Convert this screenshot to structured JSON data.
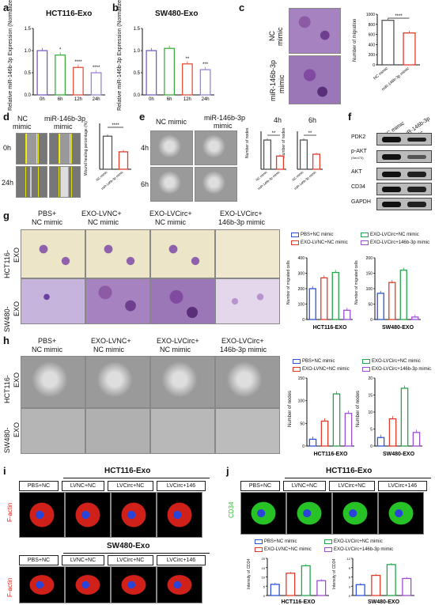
{
  "panels": {
    "a": "a",
    "b": "b",
    "c": "c",
    "d": "d",
    "e": "e",
    "f": "f",
    "g": "g",
    "h": "h",
    "i": "i",
    "j": "j"
  },
  "titles": {
    "a": "HCT116-Exo",
    "b": "SW480-Exo",
    "i": "HCT116-Exo",
    "i2": "SW480-Exo",
    "j": "HCT116-Exo"
  },
  "labels": {
    "nc_mimic": "NC mimic",
    "mir_mimic": "miR-146b-3p mimic",
    "nc": "NC",
    "mimic": "mimic",
    "mir146": "miR-146b-3p",
    "h0": "0h",
    "h24": "24h",
    "h4": "4h",
    "h6": "6h",
    "pbs_nc": "PBS+ NC mimic",
    "pbs": "PBS+",
    "exo_lvnc": "EXO-LVNC+",
    "exo_lvcirc": "EXO-LVCirc+",
    "nc_mimic2": "NC mimic",
    "mir_146": "146b-3p mimic",
    "hct_exo": "HCT116- EXO",
    "sw_exo": "SW480- EXO",
    "hct116": "HCT116-",
    "sw480": "SW480-",
    "exo": "EXO",
    "hct_exo_axis": "HCT116-EXO",
    "sw_exo_axis": "SW480-EXO",
    "pbsnc": "PBS+NC",
    "lvncnc": "LVNC+NC",
    "lvcircnc": "LVCirc+NC",
    "lvcirc146": "LVCirc+146",
    "factin": "F-actin",
    "cd34": "CD34"
  },
  "wb_labels": [
    "PDK2",
    "p-AKT",
    "(Ser473)",
    "AKT",
    "CD34",
    "GAPDH"
  ],
  "legend": [
    "PBS+NC mimic",
    "EXO-LVNC+NC mimic",
    "EXO-LVCirc+NC mimic",
    "EXO-LVCirc+146b-3p mimic"
  ],
  "colors": {
    "blue": "#2f54d8",
    "red": "#e23b2a",
    "green": "#22a64a",
    "purple": "#9b4fd2",
    "gray": "#7b7b7b"
  },
  "chart_data": [
    {
      "type": "bar",
      "categories": [
        "0h",
        "6h",
        "12h",
        "24h"
      ],
      "values": [
        1.0,
        0.9,
        0.62,
        0.5
      ],
      "ylabel": "Relative miR-146b-3p Expression (Normalized to U6)",
      "title": "HCT116-Exo",
      "ylim": [
        0,
        1.5
      ],
      "yticks": [
        "0.0",
        "0.5",
        "1.0",
        "1.5"
      ],
      "sig": [
        "",
        "*",
        "****",
        "****"
      ]
    },
    {
      "type": "bar",
      "categories": [
        "0h",
        "6h",
        "12h",
        "24h"
      ],
      "values": [
        1.0,
        1.05,
        0.7,
        0.57
      ],
      "ylabel": "Relative miR-146b-3p Expression (Normalized to U6)",
      "title": "SW480-Exo",
      "ylim": [
        0,
        1.5
      ],
      "yticks": [
        "0.0",
        "0.5",
        "1.0",
        "1.5"
      ],
      "sig": [
        "",
        "",
        "**",
        "***"
      ]
    },
    {
      "type": "bar",
      "categories": [
        "NC mimic",
        "miR-146b-3p mimic"
      ],
      "values": [
        880,
        630
      ],
      "ylabel": "Number of migration",
      "ylim": [
        0,
        1000
      ],
      "yticks": [
        "0",
        "200",
        "400",
        "600",
        "800",
        "1000"
      ],
      "sig": "****"
    },
    {
      "type": "bar",
      "categories": [
        "NC mimic",
        "miR-146b-3p mimic"
      ],
      "values": [
        72,
        38
      ],
      "ylabel": "Wound healing percentage (%)",
      "ylim": [
        0,
        100
      ],
      "sig": "****"
    },
    {
      "type": "bar",
      "categories": [
        "NC mimic",
        "miR-146b-3p mimic"
      ],
      "values": [
        62,
        28
      ],
      "ylabel": "Number of nodes",
      "title": "4h",
      "sig": "**"
    },
    {
      "type": "bar",
      "categories": [
        "NC mimic",
        "miR-146b-3p mimic"
      ],
      "values": [
        68,
        35
      ],
      "ylabel": "Number of nodes",
      "title": "6h",
      "sig": "**"
    },
    {
      "type": "bar",
      "categories": [
        "PBS+NC mimic",
        "EXO-LVNC+NC mimic",
        "EXO-LVCirc+NC mimic",
        "EXO-LVCirc+146b-3p mimic"
      ],
      "values": [
        200,
        270,
        305,
        60
      ],
      "ylabel": "Number of migrated cells",
      "xlabel": "HCT116-EXO",
      "ylim": [
        0,
        400
      ],
      "yticks": [
        "0",
        "100",
        "200",
        "300",
        "400"
      ]
    },
    {
      "type": "bar",
      "categories": [
        "PBS+NC mimic",
        "EXO-LVNC+NC mimic",
        "EXO-LVCirc+NC mimic",
        "EXO-LVCirc+146b-3p mimic"
      ],
      "values": [
        85,
        120,
        160,
        8
      ],
      "ylabel": "Number of migrated cells",
      "xlabel": "SW480-EXO",
      "ylim": [
        0,
        200
      ],
      "yticks": [
        "0",
        "50",
        "100",
        "150",
        "200"
      ]
    },
    {
      "type": "bar",
      "categories": [
        "PBS+NC mimic",
        "EXO-LVNC+NC mimic",
        "EXO-LVCirc+NC mimic",
        "EXO-LVCirc+146b-3p mimic"
      ],
      "values": [
        15,
        55,
        115,
        72
      ],
      "ylabel": "Number of nodes",
      "xlabel": "HCT116-EXO",
      "ylim": [
        0,
        150
      ],
      "yticks": [
        "0",
        "50",
        "100",
        "150"
      ]
    },
    {
      "type": "bar",
      "categories": [
        "PBS+NC mimic",
        "EXO-LVNC+NC mimic",
        "EXO-LVCirc+NC mimic",
        "EXO-LVCirc+146b-3p mimic"
      ],
      "values": [
        2.5,
        8,
        17,
        4
      ],
      "ylabel": "Number of nodes",
      "xlabel": "SW480-EXO",
      "ylim": [
        0,
        20
      ],
      "yticks": [
        "0",
        "5",
        "10",
        "15",
        "20"
      ]
    },
    {
      "type": "bar",
      "categories": [
        "PBS+NC mimic",
        "EXO-LVNC+NC mimic",
        "EXO-LVCirc+NC mimic",
        "EXO-LVCirc+146b-3p mimic"
      ],
      "values": [
        6,
        12,
        16,
        8
      ],
      "ylabel": "Intensity of CD34",
      "xlabel": "HCT116-EXO",
      "ylim": [
        0,
        20
      ],
      "yticks": [
        "0",
        "5",
        "10",
        "15",
        "20"
      ]
    },
    {
      "type": "bar",
      "categories": [
        "PBS+NC mimic",
        "EXO-LVNC+NC mimic",
        "EXO-LVCirc+NC mimic",
        "EXO-LVCirc+146b-3p mimic"
      ],
      "values": [
        3.5,
        6.5,
        10,
        5.5
      ],
      "ylabel": "Intensity of CD34",
      "xlabel": "SW480-EXO",
      "ylim": [
        0,
        12
      ],
      "yticks": [
        "0",
        "3",
        "6",
        "9",
        "12"
      ]
    }
  ]
}
